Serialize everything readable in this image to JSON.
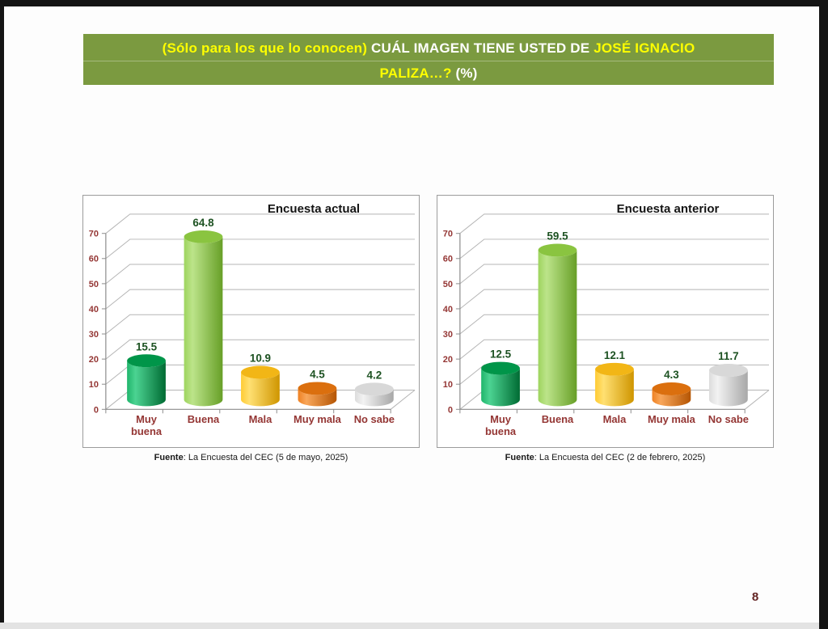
{
  "banner": {
    "line1_a": "(Sólo para los que lo conocen) ",
    "line1_b": "CUÁL IMAGEN TIENE USTED DE ",
    "line1_c": "JOSÉ IGNACIO",
    "line2_a": "PALIZA…? ",
    "line2_b": "(%)",
    "bg_color": "#7B9A40",
    "highlight_color": "#FFFF00",
    "normal_color": "#FFFFFF"
  },
  "chart_data": [
    {
      "type": "bar",
      "title": "Encuesta actual",
      "categories": [
        "Muy buena",
        "Buena",
        "Mala",
        "Muy mala",
        "No sabe"
      ],
      "category_lines": [
        [
          "Muy",
          "buena"
        ],
        [
          "Buena"
        ],
        [
          "Mala"
        ],
        [
          "Muy mala"
        ],
        [
          "No sabe"
        ]
      ],
      "values": [
        15.5,
        64.8,
        10.9,
        4.5,
        4.2
      ],
      "ylim": [
        0,
        70
      ],
      "ytick_step": 10,
      "grid": true,
      "legend": false,
      "style_3d": "cylinder",
      "source_label": "Fuente",
      "source_rest": ": La Encuesta del CEC (5 de mayo, 2025)"
    },
    {
      "type": "bar",
      "title": "Encuesta anterior",
      "categories": [
        "Muy buena",
        "Buena",
        "Mala",
        "Muy mala",
        "No sabe"
      ],
      "category_lines": [
        [
          "Muy",
          "buena"
        ],
        [
          "Buena"
        ],
        [
          "Mala"
        ],
        [
          "Muy mala"
        ],
        [
          "No sabe"
        ]
      ],
      "values": [
        12.5,
        59.5,
        12.1,
        4.3,
        11.7
      ],
      "ylim": [
        0,
        70
      ],
      "ytick_step": 10,
      "grid": true,
      "legend": false,
      "style_3d": "cylinder",
      "source_label": "Fuente",
      "source_rest": ": La Encuesta del CEC (2 de febrero, 2025)"
    }
  ],
  "chart_style": {
    "bar_colors": [
      {
        "name": "emerald-green",
        "light": "#1fb56b",
        "highlight": "#4cd392",
        "dark": "#006b33",
        "top": "#009549"
      },
      {
        "name": "light-green",
        "light": "#9ed45e",
        "highlight": "#bce48a",
        "dark": "#679f27",
        "top": "#8ac440"
      },
      {
        "name": "gold",
        "light": "#ffcb33",
        "highlight": "#ffe072",
        "dark": "#cf9500",
        "top": "#f2b616"
      },
      {
        "name": "orange",
        "light": "#ef8122",
        "highlight": "#f8a65a",
        "dark": "#b55503",
        "top": "#db6f0e"
      },
      {
        "name": "silver",
        "light": "#dcdcdc",
        "highlight": "#f2f2f2",
        "dark": "#a8a8a8",
        "top": "#d8d8d8"
      }
    ],
    "grid_color": "#b5b5b5",
    "axis_color": "#8c8c8c",
    "value_label_color": "#1d5222",
    "category_label_color": "#943634",
    "ytick_label_color": "#943634"
  },
  "footer": {
    "page_number": "8"
  }
}
